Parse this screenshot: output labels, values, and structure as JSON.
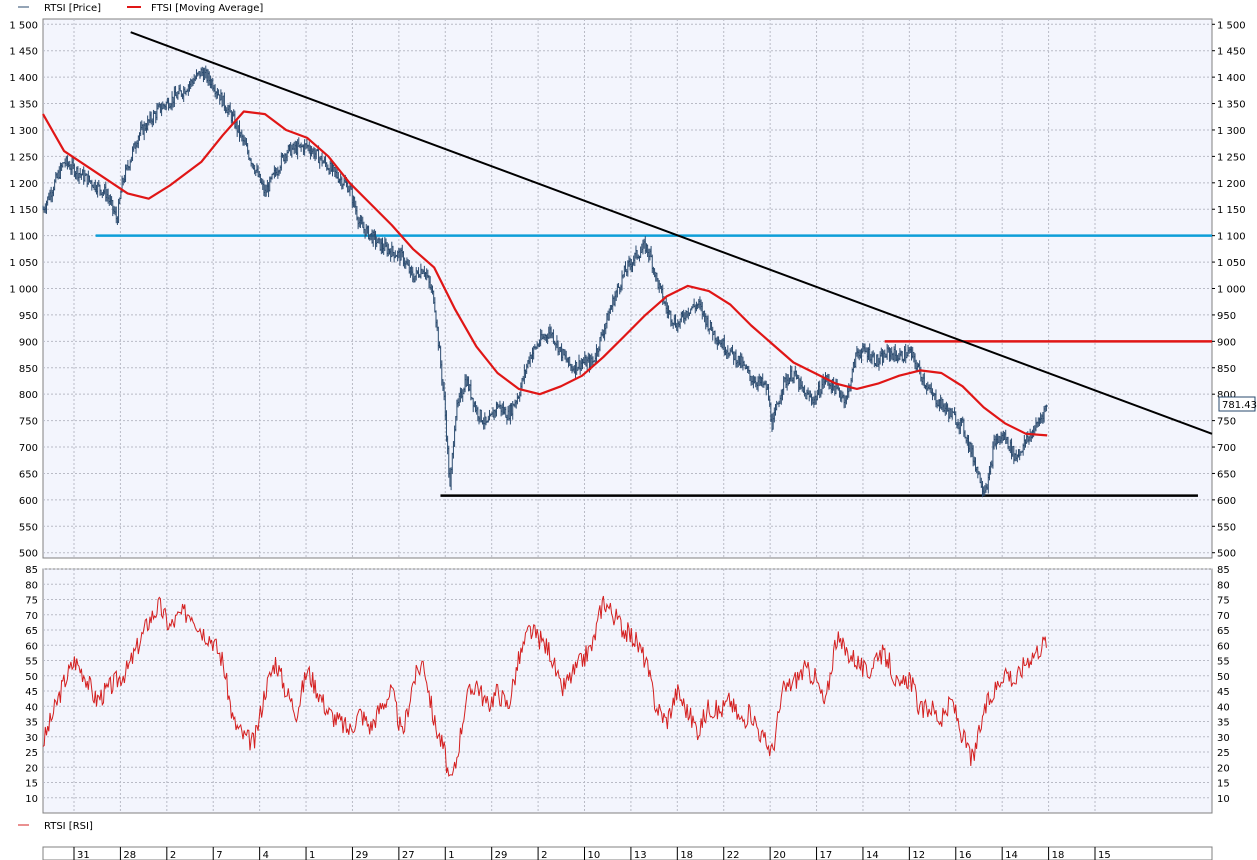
{
  "legend": {
    "price_label": "RTSI [Price]",
    "ma_label": "FTSI [Moving Average]",
    "rsi_label": "RTSI [RSI]"
  },
  "last_price_label": "781.43",
  "colors": {
    "background": "#ffffff",
    "plot_background": "#f3f5fd",
    "grid": "#b9bbc6",
    "price": "#2a4a6e",
    "moving_average": "#e01616",
    "rsi": "#d42020",
    "support_resistance_blue": "#0d9ed8",
    "resistance_red": "#e01616",
    "trendline": "#000000"
  },
  "chart_data": [
    {
      "type": "line",
      "panel": "price",
      "ylim": [
        490,
        1510
      ],
      "y_ticks": [
        500,
        550,
        600,
        650,
        700,
        750,
        800,
        850,
        900,
        950,
        1000,
        1050,
        1100,
        1150,
        1200,
        1250,
        1300,
        1350,
        1400,
        1450,
        1500
      ],
      "y_tick_labels": [
        "500",
        "550",
        "600",
        "650",
        "700",
        "750",
        "800",
        "850",
        "900",
        "950",
        "1 000",
        "1 050",
        "1 100",
        "1 150",
        "1 200",
        "1 250",
        "1 300",
        "1 350",
        "1 400",
        "1 450",
        "1 500"
      ],
      "x_ticks": [
        "31",
        "28",
        "2",
        "7",
        "4",
        "1",
        "29",
        "27",
        "1",
        "29",
        "2",
        "10",
        "13",
        "18",
        "22",
        "20",
        "17",
        "14",
        "12",
        "16",
        "14",
        "18",
        "15"
      ],
      "grid": true,
      "series": [
        {
          "name": "RTSI [Price]",
          "kind": "ohlc-bars",
          "points": [
            [
              0,
              1150
            ],
            [
              0.01,
              1195
            ],
            [
              0.02,
              1240
            ],
            [
              0.04,
              1210
            ],
            [
              0.06,
              1180
            ],
            [
              0.07,
              1130
            ],
            [
              0.075,
              1200
            ],
            [
              0.09,
              1290
            ],
            [
              0.11,
              1340
            ],
            [
              0.13,
              1370
            ],
            [
              0.15,
              1410
            ],
            [
              0.16,
              1390
            ],
            [
              0.18,
              1320
            ],
            [
              0.2,
              1230
            ],
            [
              0.21,
              1180
            ],
            [
              0.23,
              1260
            ],
            [
              0.25,
              1270
            ],
            [
              0.27,
              1230
            ],
            [
              0.29,
              1190
            ],
            [
              0.3,
              1120
            ],
            [
              0.32,
              1080
            ],
            [
              0.34,
              1060
            ],
            [
              0.35,
              1020
            ],
            [
              0.36,
              1040
            ],
            [
              0.37,
              980
            ],
            [
              0.375,
              880
            ],
            [
              0.38,
              780
            ],
            [
              0.385,
              620
            ],
            [
              0.39,
              760
            ],
            [
              0.4,
              830
            ],
            [
              0.41,
              770
            ],
            [
              0.42,
              740
            ],
            [
              0.43,
              780
            ],
            [
              0.44,
              760
            ],
            [
              0.45,
              800
            ],
            [
              0.46,
              870
            ],
            [
              0.47,
              900
            ],
            [
              0.48,
              920
            ],
            [
              0.49,
              880
            ],
            [
              0.5,
              850
            ],
            [
              0.51,
              860
            ],
            [
              0.52,
              860
            ],
            [
              0.53,
              920
            ],
            [
              0.54,
              980
            ],
            [
              0.55,
              1030
            ],
            [
              0.56,
              1060
            ],
            [
              0.57,
              1080
            ],
            [
              0.575,
              1060
            ],
            [
              0.58,
              1020
            ],
            [
              0.59,
              960
            ],
            [
              0.6,
              930
            ],
            [
              0.61,
              960
            ],
            [
              0.62,
              970
            ],
            [
              0.63,
              930
            ],
            [
              0.64,
              900
            ],
            [
              0.65,
              880
            ],
            [
              0.66,
              860
            ],
            [
              0.67,
              830
            ],
            [
              0.68,
              820
            ],
            [
              0.685,
              810
            ],
            [
              0.69,
              740
            ],
            [
              0.7,
              820
            ],
            [
              0.71,
              840
            ],
            [
              0.72,
              800
            ],
            [
              0.73,
              790
            ],
            [
              0.74,
              830
            ],
            [
              0.75,
              810
            ],
            [
              0.76,
              790
            ],
            [
              0.77,
              880
            ],
            [
              0.78,
              880
            ],
            [
              0.79,
              860
            ],
            [
              0.8,
              880
            ],
            [
              0.81,
              870
            ],
            [
              0.82,
              880
            ],
            [
              0.83,
              840
            ],
            [
              0.84,
              800
            ],
            [
              0.85,
              780
            ],
            [
              0.86,
              760
            ],
            [
              0.87,
              740
            ],
            [
              0.88,
              680
            ],
            [
              0.89,
              620
            ],
            [
              0.895,
              640
            ],
            [
              0.9,
              710
            ],
            [
              0.91,
              720
            ],
            [
              0.92,
              680
            ],
            [
              0.93,
              710
            ],
            [
              0.94,
              740
            ],
            [
              0.95,
              781
            ]
          ]
        },
        {
          "name": "FTSI [Moving Average]",
          "kind": "line",
          "points": [
            [
              0,
              1330
            ],
            [
              0.02,
              1260
            ],
            [
              0.05,
              1220
            ],
            [
              0.08,
              1180
            ],
            [
              0.1,
              1170
            ],
            [
              0.12,
              1195
            ],
            [
              0.15,
              1240
            ],
            [
              0.17,
              1290
            ],
            [
              0.19,
              1335
            ],
            [
              0.21,
              1330
            ],
            [
              0.23,
              1300
            ],
            [
              0.25,
              1285
            ],
            [
              0.27,
              1250
            ],
            [
              0.29,
              1200
            ],
            [
              0.31,
              1160
            ],
            [
              0.33,
              1120
            ],
            [
              0.35,
              1075
            ],
            [
              0.37,
              1040
            ],
            [
              0.39,
              960
            ],
            [
              0.41,
              890
            ],
            [
              0.43,
              840
            ],
            [
              0.45,
              810
            ],
            [
              0.47,
              800
            ],
            [
              0.49,
              815
            ],
            [
              0.51,
              835
            ],
            [
              0.53,
              870
            ],
            [
              0.55,
              910
            ],
            [
              0.57,
              950
            ],
            [
              0.59,
              985
            ],
            [
              0.61,
              1005
            ],
            [
              0.63,
              995
            ],
            [
              0.65,
              970
            ],
            [
              0.67,
              930
            ],
            [
              0.69,
              895
            ],
            [
              0.71,
              860
            ],
            [
              0.73,
              840
            ],
            [
              0.75,
              820
            ],
            [
              0.77,
              810
            ],
            [
              0.79,
              820
            ],
            [
              0.81,
              835
            ],
            [
              0.83,
              845
            ],
            [
              0.85,
              840
            ],
            [
              0.87,
              815
            ],
            [
              0.89,
              775
            ],
            [
              0.91,
              745
            ],
            [
              0.93,
              725
            ],
            [
              0.95,
              722
            ]
          ]
        }
      ],
      "annotations": [
        {
          "type": "hline",
          "color": "support_resistance_blue",
          "y": 1100,
          "x_from": 0.045,
          "x_to": 1.0
        },
        {
          "type": "hline",
          "color": "resistance_red",
          "y": 900,
          "x_from": 0.72,
          "x_to": 1.0
        },
        {
          "type": "hline",
          "color": "trendline",
          "y": 608,
          "x_from": 0.34,
          "x_to": 0.988
        },
        {
          "type": "trendline",
          "color": "trendline",
          "from": [
            0.075,
            1485
          ],
          "to": [
            1.0,
            725
          ]
        }
      ]
    },
    {
      "type": "line",
      "panel": "rsi",
      "ylim": [
        5,
        85
      ],
      "y_ticks": [
        10,
        15,
        20,
        25,
        30,
        35,
        40,
        45,
        50,
        55,
        60,
        65,
        70,
        75,
        80,
        85
      ],
      "grid": true,
      "series": [
        {
          "name": "RTSI [RSI]",
          "points": [
            [
              0,
              28
            ],
            [
              0.02,
              48
            ],
            [
              0.03,
              55
            ],
            [
              0.04,
              50
            ],
            [
              0.05,
              42
            ],
            [
              0.06,
              45
            ],
            [
              0.08,
              52
            ],
            [
              0.1,
              68
            ],
            [
              0.11,
              73
            ],
            [
              0.12,
              66
            ],
            [
              0.13,
              70
            ],
            [
              0.14,
              71
            ],
            [
              0.15,
              65
            ],
            [
              0.16,
              62
            ],
            [
              0.17,
              55
            ],
            [
              0.18,
              35
            ],
            [
              0.19,
              30
            ],
            [
              0.2,
              28
            ],
            [
              0.21,
              45
            ],
            [
              0.22,
              55
            ],
            [
              0.23,
              45
            ],
            [
              0.24,
              38
            ],
            [
              0.25,
              52
            ],
            [
              0.26,
              45
            ],
            [
              0.27,
              38
            ],
            [
              0.28,
              35
            ],
            [
              0.29,
              32
            ],
            [
              0.3,
              38
            ],
            [
              0.31,
              33
            ],
            [
              0.32,
              40
            ],
            [
              0.33,
              45
            ],
            [
              0.34,
              30
            ],
            [
              0.35,
              48
            ],
            [
              0.36,
              55
            ],
            [
              0.37,
              35
            ],
            [
              0.38,
              25
            ],
            [
              0.385,
              14
            ],
            [
              0.39,
              20
            ],
            [
              0.4,
              42
            ],
            [
              0.41,
              48
            ],
            [
              0.42,
              40
            ],
            [
              0.43,
              45
            ],
            [
              0.44,
              40
            ],
            [
              0.45,
              55
            ],
            [
              0.46,
              65
            ],
            [
              0.47,
              62
            ],
            [
              0.48,
              58
            ],
            [
              0.49,
              45
            ],
            [
              0.5,
              50
            ],
            [
              0.51,
              55
            ],
            [
              0.52,
              60
            ],
            [
              0.53,
              75
            ],
            [
              0.54,
              70
            ],
            [
              0.55,
              65
            ],
            [
              0.56,
              62
            ],
            [
              0.57,
              55
            ],
            [
              0.58,
              40
            ],
            [
              0.59,
              35
            ],
            [
              0.6,
              45
            ],
            [
              0.61,
              38
            ],
            [
              0.62,
              32
            ],
            [
              0.63,
              40
            ],
            [
              0.64,
              38
            ],
            [
              0.65,
              42
            ],
            [
              0.66,
              35
            ],
            [
              0.67,
              38
            ],
            [
              0.68,
              30
            ],
            [
              0.69,
              25
            ],
            [
              0.7,
              45
            ],
            [
              0.71,
              48
            ],
            [
              0.72,
              52
            ],
            [
              0.73,
              50
            ],
            [
              0.74,
              40
            ],
            [
              0.75,
              62
            ],
            [
              0.76,
              58
            ],
            [
              0.77,
              55
            ],
            [
              0.78,
              50
            ],
            [
              0.79,
              58
            ],
            [
              0.8,
              55
            ],
            [
              0.81,
              45
            ],
            [
              0.82,
              50
            ],
            [
              0.83,
              38
            ],
            [
              0.84,
              40
            ],
            [
              0.85,
              35
            ],
            [
              0.86,
              42
            ],
            [
              0.87,
              30
            ],
            [
              0.88,
              22
            ],
            [
              0.89,
              38
            ],
            [
              0.9,
              45
            ],
            [
              0.91,
              52
            ],
            [
              0.92,
              48
            ],
            [
              0.93,
              55
            ],
            [
              0.94,
              58
            ],
            [
              0.95,
              62
            ]
          ]
        }
      ]
    }
  ]
}
